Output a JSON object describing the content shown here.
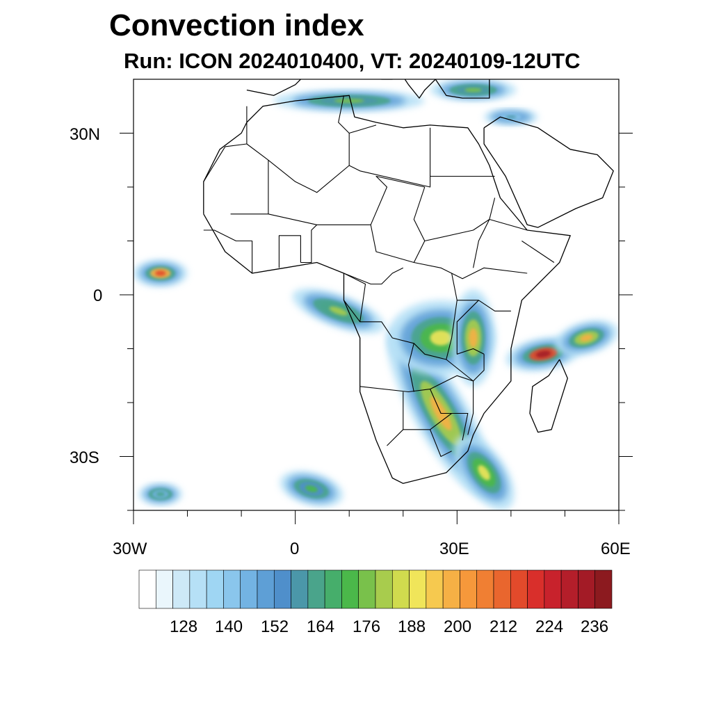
{
  "title": "Convection index",
  "subtitle": "Run: ICON 2024010400,  VT: 20240109-12UTC",
  "map": {
    "projection": "lat-lon",
    "lon_range": [
      -30,
      60
    ],
    "lat_range": [
      -40,
      40
    ],
    "x_ticks": [
      {
        "lon": -30,
        "label": "30W"
      },
      {
        "lon": 0,
        "label": "0"
      },
      {
        "lon": 30,
        "label": "30E"
      },
      {
        "lon": 60,
        "label": "60E"
      }
    ],
    "y_ticks": [
      {
        "lat": 30,
        "label": "30N"
      },
      {
        "lat": 0,
        "label": "0"
      },
      {
        "lat": -30,
        "label": "30S"
      }
    ],
    "minor_lon_ticks": [
      -20,
      -10,
      10,
      20,
      40,
      50
    ],
    "minor_lat_ticks": [
      20,
      10,
      -10,
      -20,
      -40
    ]
  },
  "colorbar": {
    "colors": [
      "#ffffff",
      "#eaf6fc",
      "#cde9f7",
      "#b6e0f6",
      "#9fd6f3",
      "#8ac6ec",
      "#73b3e3",
      "#5e9fd6",
      "#4f8fcb",
      "#4b97a9",
      "#4aa48b",
      "#46ae6b",
      "#4bb84a",
      "#79c14b",
      "#a8cc4d",
      "#d0db4e",
      "#f0e55a",
      "#f6c94f",
      "#f6b045",
      "#f6983b",
      "#f07f33",
      "#e9662e",
      "#e24a2b",
      "#d92f2b",
      "#c8222c",
      "#b41e2a",
      "#a31b26",
      "#8c1a1f"
    ],
    "labels": [
      "128",
      "140",
      "152",
      "164",
      "176",
      "188",
      "200",
      "212",
      "224",
      "236"
    ]
  },
  "fields": [
    {
      "name": "southern-africa-band",
      "lon": 27,
      "lat": -22,
      "rx": 5,
      "ry": 18,
      "rot": -30,
      "level": 14
    },
    {
      "name": "southeast-band-tail",
      "lon": 35,
      "lat": -33,
      "rx": 4,
      "ry": 8,
      "rot": -35,
      "level": 12
    },
    {
      "name": "congo-basin-cells",
      "lon": 27,
      "lat": -8,
      "rx": 10,
      "ry": 7,
      "rot": 0,
      "level": 12
    },
    {
      "name": "east-africa-cells",
      "lon": 33,
      "lat": -8,
      "rx": 4,
      "ry": 9,
      "rot": 0,
      "level": 14
    },
    {
      "name": "madagascar-cyclone",
      "lon": 46,
      "lat": -11,
      "rx": 7,
      "ry": 3,
      "rot": -10,
      "level": 22
    },
    {
      "name": "indian-ocean-band",
      "lon": 54,
      "lat": -8,
      "rx": 6,
      "ry": 3,
      "rot": -15,
      "level": 14
    },
    {
      "name": "gulf-of-guinea-band",
      "lon": 8,
      "lat": -3,
      "rx": 9,
      "ry": 3,
      "rot": 20,
      "level": 10
    },
    {
      "name": "atlantic-cluster",
      "lon": -25,
      "lat": 4,
      "rx": 5,
      "ry": 2.5,
      "rot": 0,
      "level": 18
    },
    {
      "name": "mediterranean-band",
      "lon": 10,
      "lat": 36,
      "rx": 14,
      "ry": 2,
      "rot": 0,
      "level": 9
    },
    {
      "name": "eastern-mediterranean-band",
      "lon": 33,
      "lat": 38,
      "rx": 8,
      "ry": 2,
      "rot": 0,
      "level": 9
    },
    {
      "name": "south-atlantic-cluster",
      "lon": 3,
      "lat": -36,
      "rx": 6,
      "ry": 3,
      "rot": 15,
      "level": 8
    },
    {
      "name": "southwest-atlantic-cluster",
      "lon": -25,
      "lat": -37,
      "rx": 4,
      "ry": 2,
      "rot": 0,
      "level": 6
    },
    {
      "name": "red-sea-cells",
      "lon": 40,
      "lat": 33,
      "rx": 5,
      "ry": 1.5,
      "rot": 0,
      "level": 5
    }
  ],
  "coastlines": {
    "africa": [
      [
        -17,
        15
      ],
      [
        -17,
        21
      ],
      [
        -14,
        27
      ],
      [
        -10,
        30
      ],
      [
        -9,
        32
      ],
      [
        -6,
        35
      ],
      [
        0,
        36
      ],
      [
        10,
        37
      ],
      [
        11,
        33
      ],
      [
        15,
        32
      ],
      [
        20,
        31
      ],
      [
        25,
        31.5
      ],
      [
        32,
        31
      ],
      [
        34,
        28
      ],
      [
        36,
        24
      ],
      [
        38,
        18
      ],
      [
        43,
        12
      ],
      [
        51,
        11
      ],
      [
        49,
        6
      ],
      [
        42,
        -1
      ],
      [
        40,
        -10
      ],
      [
        40,
        -16
      ],
      [
        35,
        -22
      ],
      [
        33,
        -26
      ],
      [
        32,
        -29
      ],
      [
        28,
        -33
      ],
      [
        20,
        -35
      ],
      [
        18,
        -34
      ],
      [
        15,
        -27
      ],
      [
        12,
        -18
      ],
      [
        12,
        -8
      ],
      [
        9,
        -1
      ],
      [
        9,
        4
      ],
      [
        4,
        6
      ],
      [
        -2,
        5
      ],
      [
        -8,
        4
      ],
      [
        -13,
        8
      ],
      [
        -17,
        15
      ]
    ],
    "arabia": [
      [
        35,
        31
      ],
      [
        35,
        28
      ],
      [
        39,
        22
      ],
      [
        43,
        13
      ],
      [
        45,
        12.5
      ],
      [
        52,
        16
      ],
      [
        57,
        18
      ],
      [
        59,
        23
      ],
      [
        56,
        26
      ],
      [
        51,
        27
      ],
      [
        48,
        29
      ],
      [
        45,
        31
      ],
      [
        38,
        33
      ],
      [
        35,
        31
      ]
    ],
    "madagascar": [
      [
        49,
        -12
      ],
      [
        50.5,
        -15.5
      ],
      [
        47.5,
        -25
      ],
      [
        45,
        -25.5
      ],
      [
        43.5,
        -22
      ],
      [
        44,
        -17
      ],
      [
        47,
        -15
      ],
      [
        49,
        -12
      ]
    ],
    "europe": [
      [
        -9,
        38
      ],
      [
        -4,
        37
      ],
      [
        0,
        39
      ],
      [
        3,
        42
      ],
      [
        7,
        44
      ],
      [
        10,
        44
      ],
      [
        12,
        42
      ],
      [
        16,
        40
      ],
      [
        18,
        40
      ],
      [
        16,
        41
      ],
      [
        13,
        44
      ],
      [
        13,
        46
      ]
    ],
    "balkans": [
      [
        19,
        42
      ],
      [
        21,
        39
      ],
      [
        23,
        36.5
      ],
      [
        24,
        38
      ],
      [
        27,
        41
      ],
      [
        29,
        41
      ]
    ],
    "anatolia": [
      [
        26,
        40
      ],
      [
        28,
        37
      ],
      [
        31,
        36.5
      ],
      [
        36,
        36.5
      ],
      [
        36,
        40
      ]
    ]
  },
  "borders": [
    [
      [
        -9,
        35
      ],
      [
        -9,
        28
      ],
      [
        -13,
        27.5
      ],
      [
        -17,
        21
      ]
    ],
    [
      [
        -9,
        28
      ],
      [
        -5,
        25
      ],
      [
        0,
        21
      ],
      [
        4,
        19
      ],
      [
        10,
        24
      ],
      [
        10,
        30
      ],
      [
        8,
        32
      ],
      [
        9,
        37
      ]
    ],
    [
      [
        10,
        30
      ],
      [
        15,
        31.5
      ]
    ],
    [
      [
        10,
        24
      ],
      [
        12,
        23
      ],
      [
        25,
        20
      ],
      [
        25,
        22
      ],
      [
        25,
        31
      ]
    ],
    [
      [
        25,
        22
      ],
      [
        37,
        22
      ]
    ],
    [
      [
        -12,
        15
      ],
      [
        -5,
        15
      ],
      [
        4,
        13
      ],
      [
        14,
        13
      ],
      [
        15,
        8
      ],
      [
        22,
        6
      ],
      [
        27,
        5
      ],
      [
        31,
        3
      ],
      [
        35,
        5
      ],
      [
        43,
        4
      ]
    ],
    [
      [
        14,
        13
      ],
      [
        17,
        20
      ],
      [
        15,
        22
      ],
      [
        24,
        20
      ]
    ],
    [
      [
        22,
        6
      ],
      [
        24,
        10
      ],
      [
        22,
        14
      ],
      [
        24,
        20
      ]
    ],
    [
      [
        24,
        10
      ],
      [
        33,
        12
      ],
      [
        36,
        14
      ],
      [
        37,
        18
      ]
    ],
    [
      [
        36,
        14
      ],
      [
        43,
        12
      ]
    ],
    [
      [
        33,
        5
      ],
      [
        34,
        10
      ],
      [
        36,
        14
      ]
    ],
    [
      [
        42,
        10
      ],
      [
        45,
        8
      ],
      [
        48,
        6
      ]
    ],
    [
      [
        9,
        4
      ],
      [
        14,
        2
      ],
      [
        16,
        2
      ],
      [
        18,
        4
      ],
      [
        20,
        5
      ]
    ],
    [
      [
        12,
        -5
      ],
      [
        16,
        -5
      ],
      [
        18,
        -8
      ],
      [
        22,
        -9
      ],
      [
        24,
        -11
      ],
      [
        28,
        -12
      ],
      [
        29,
        -8
      ],
      [
        30,
        -1
      ],
      [
        29,
        4
      ]
    ],
    [
      [
        30,
        -1
      ],
      [
        34,
        -1
      ],
      [
        37,
        -3
      ],
      [
        40,
        -3
      ]
    ],
    [
      [
        34,
        -1
      ],
      [
        30,
        -5
      ],
      [
        30,
        -11
      ],
      [
        33,
        -10
      ],
      [
        35,
        -11
      ]
    ],
    [
      [
        12,
        -17
      ],
      [
        21,
        -18
      ],
      [
        25,
        -17.5
      ],
      [
        30,
        -15
      ],
      [
        33,
        -16
      ]
    ],
    [
      [
        22,
        -9
      ],
      [
        21,
        -13
      ],
      [
        22,
        -18
      ]
    ],
    [
      [
        20,
        -18
      ],
      [
        20,
        -25
      ],
      [
        25,
        -25
      ],
      [
        29,
        -22
      ],
      [
        32,
        -22
      ],
      [
        31,
        -27
      ]
    ],
    [
      [
        20,
        -25
      ],
      [
        17,
        -28
      ]
    ],
    [
      [
        28,
        -12
      ],
      [
        33,
        -16
      ],
      [
        33,
        -22
      ],
      [
        32,
        -26
      ]
    ],
    [
      [
        35,
        -11
      ],
      [
        35,
        -14
      ],
      [
        33,
        -16
      ]
    ],
    [
      [
        25,
        -17.5
      ],
      [
        27,
        -22
      ],
      [
        29,
        -22
      ]
    ],
    [
      [
        25,
        -25
      ],
      [
        27,
        -30
      ],
      [
        29,
        -29
      ]
    ],
    [
      [
        9,
        4
      ],
      [
        13,
        2
      ],
      [
        12,
        -5
      ],
      [
        9,
        -1
      ]
    ],
    [
      [
        -3,
        5
      ],
      [
        -3,
        11
      ],
      [
        1,
        11
      ],
      [
        1,
        6
      ]
    ],
    [
      [
        1,
        6
      ],
      [
        3,
        6
      ],
      [
        3,
        12
      ],
      [
        4,
        13
      ]
    ],
    [
      [
        -8,
        4
      ],
      [
        -8,
        10
      ],
      [
        -11,
        10
      ],
      [
        -15,
        12
      ],
      [
        -17,
        12
      ]
    ],
    [
      [
        -5,
        15
      ],
      [
        -5,
        25
      ]
    ]
  ]
}
